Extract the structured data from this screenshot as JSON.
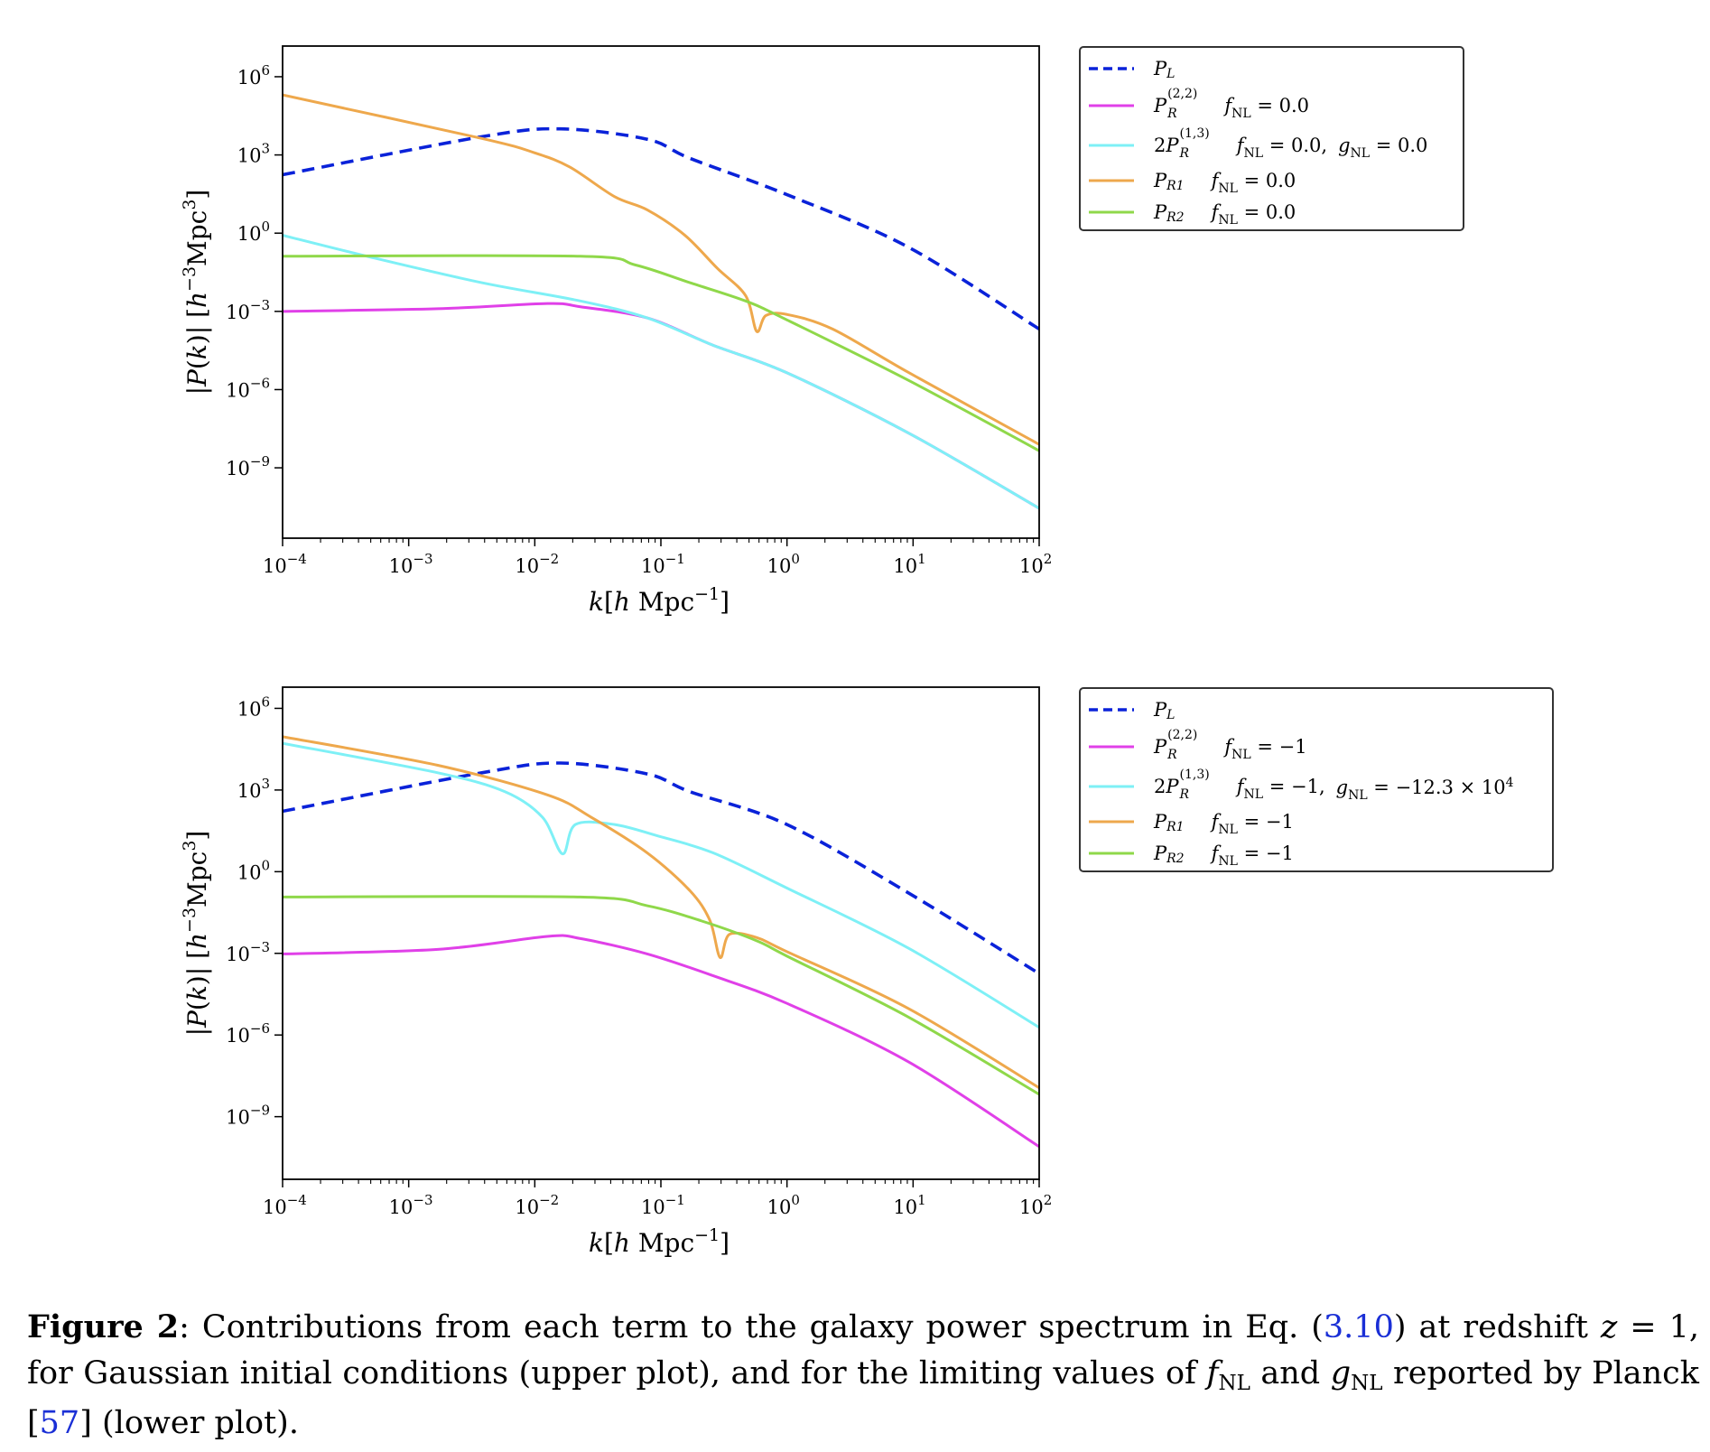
{
  "chart_data": [
    {
      "type": "line",
      "xscale": "log",
      "yscale": "log",
      "xlim": [
        0.0001,
        100
      ],
      "ylim": [
        2e-12,
        15000000.0
      ],
      "grid": false,
      "legend_placement": "outside-right-top",
      "xlabel": {
        "pre": "k",
        "mid": "[",
        "h": "h",
        "unit": " Mpc",
        "exp": "−1",
        "post": "]"
      },
      "ylabel": {
        "text1": "|",
        "P": "P",
        "text2": "(",
        "k": "k",
        "text3": ")| [",
        "h": "h",
        "exp1": "−3",
        "unit": "Mpc",
        "exp2": "3",
        "text4": "]"
      },
      "xticks": [
        {
          "base": "10",
          "exp": "−4",
          "v": 0.0001
        },
        {
          "base": "10",
          "exp": "−3",
          "v": 0.001
        },
        {
          "base": "10",
          "exp": "−2",
          "v": 0.01
        },
        {
          "base": "10",
          "exp": "−1",
          "v": 0.1
        },
        {
          "base": "10",
          "exp": "0",
          "v": 1
        },
        {
          "base": "10",
          "exp": "1",
          "v": 10
        },
        {
          "base": "10",
          "exp": "2",
          "v": 100
        }
      ],
      "yticks": [
        {
          "base": "10",
          "exp": "6",
          "v": 1000000.0
        },
        {
          "base": "10",
          "exp": "3",
          "v": 1000.0
        },
        {
          "base": "10",
          "exp": "0",
          "v": 1
        },
        {
          "base": "10",
          "exp": "−3",
          "v": 0.001
        },
        {
          "base": "10",
          "exp": "−6",
          "v": 1e-06
        },
        {
          "base": "10",
          "exp": "−9",
          "v": 1e-09
        }
      ],
      "series": [
        {
          "name": "P_L",
          "color": "#0a22d9",
          "dash": true,
          "label": {
            "prefix": "",
            "sym": "P",
            "sub": "L",
            "sup": "",
            "params": []
          },
          "x": [
            0.0001,
            0.0038,
            0.016,
            0.078,
            0.17,
            1,
            9.3,
            100
          ],
          "y": [
            174,
            5000,
            10000,
            4000,
            740,
            30,
            0.28,
            0.00021
          ]
        },
        {
          "name": "P_R^(2,2)",
          "color": "#e040e8",
          "dash": false,
          "label": {
            "prefix": "",
            "sym": "P",
            "sub": "R",
            "sup": "(2,2)",
            "params": [
              {
                "var": "f",
                "sub": "NL",
                "rest": " = 0.0"
              }
            ]
          },
          "x": [
            0.0001,
            0.0017,
            0.0126,
            0.023,
            0.078,
            0.26,
            1,
            9.3,
            100
          ],
          "y": [
            0.001,
            0.00126,
            0.002,
            0.0015,
            0.00056,
            5e-05,
            4.4e-06,
            2.1e-08,
            2.8e-11
          ]
        },
        {
          "name": "2P_R^(1,3)",
          "color": "#7ef0f6",
          "dash": false,
          "label": {
            "prefix": "2",
            "sym": "P",
            "sub": "R",
            "sup": "(1,3)",
            "params": [
              {
                "var": "f",
                "sub": "NL",
                "rest": " = 0.0,"
              },
              {
                "var": "g",
                "sub": "NL",
                "rest": " = 0.0"
              }
            ]
          },
          "x": [
            0.0001,
            0.00051,
            0.0038,
            0.023,
            0.078,
            0.26,
            1,
            9.3,
            100
          ],
          "y": [
            0.83,
            0.117,
            0.0126,
            0.0025,
            0.00056,
            5e-05,
            4.4e-06,
            2.1e-08,
            2.8e-11
          ]
        },
        {
          "name": "P_R1",
          "color": "#eea84c",
          "dash": false,
          "label": {
            "prefix": "",
            "sym": "P",
            "sub": "R1",
            "sup": "",
            "params": [
              {
                "var": "f",
                "sub": "NL",
                "rest": " = 0.0"
              }
            ]
          },
          "x": [
            0.0001,
            0.0038,
            0.01,
            0.019,
            0.043,
            0.078,
            0.155,
            0.28,
            0.47,
            0.575,
            0.68,
            1,
            2.3,
            9.3,
            100
          ],
          "y": [
            200000.0,
            4300,
            1200,
            340,
            25,
            7.8,
            0.83,
            0.045,
            0.004,
            0.00017,
            0.00069,
            0.00076,
            0.00021,
            4.4e-06,
            7.9e-09
          ]
        },
        {
          "name": "P_R2",
          "color": "#8fd84a",
          "dash": false,
          "label": {
            "prefix": "",
            "sym": "P",
            "sub": "R2",
            "sup": "",
            "params": [
              {
                "var": "f",
                "sub": "NL",
                "rest": " = 0.0"
              }
            ]
          },
          "x": [
            0.0001,
            0.023,
            0.063,
            0.17,
            0.47,
            1,
            9.3,
            100
          ],
          "y": [
            0.13,
            0.13,
            0.06,
            0.0126,
            0.0025,
            0.00047,
            2.2e-06,
            4.5e-09
          ]
        }
      ]
    },
    {
      "type": "line",
      "xscale": "log",
      "yscale": "log",
      "xlim": [
        0.0001,
        100
      ],
      "ylim": [
        5e-12,
        6000000.0
      ],
      "grid": false,
      "legend_placement": "outside-right-top",
      "xlabel": {
        "pre": "k",
        "mid": "[",
        "h": "h",
        "unit": " Mpc",
        "exp": "−1",
        "post": "]"
      },
      "ylabel": {
        "text1": "|",
        "P": "P",
        "text2": "(",
        "k": "k",
        "text3": ")| [",
        "h": "h",
        "exp1": "−3",
        "unit": "Mpc",
        "exp2": "3",
        "text4": "]"
      },
      "xticks": [
        {
          "base": "10",
          "exp": "−4",
          "v": 0.0001
        },
        {
          "base": "10",
          "exp": "−3",
          "v": 0.001
        },
        {
          "base": "10",
          "exp": "−2",
          "v": 0.01
        },
        {
          "base": "10",
          "exp": "−1",
          "v": 0.1
        },
        {
          "base": "10",
          "exp": "0",
          "v": 1
        },
        {
          "base": "10",
          "exp": "1",
          "v": 10
        },
        {
          "base": "10",
          "exp": "2",
          "v": 100
        }
      ],
      "yticks": [
        {
          "base": "10",
          "exp": "6",
          "v": 1000000.0
        },
        {
          "base": "10",
          "exp": "3",
          "v": 1000.0
        },
        {
          "base": "10",
          "exp": "0",
          "v": 1
        },
        {
          "base": "10",
          "exp": "−3",
          "v": 0.001
        },
        {
          "base": "10",
          "exp": "−6",
          "v": 1e-06
        },
        {
          "base": "10",
          "exp": "−9",
          "v": 1e-09
        }
      ],
      "series": [
        {
          "name": "P_L",
          "color": "#0a22d9",
          "dash": true,
          "label": {
            "prefix": "",
            "sym": "P",
            "sub": "L",
            "sup": "",
            "params": []
          },
          "x": [
            0.0001,
            0.0038,
            0.016,
            0.078,
            0.17,
            1,
            9.3,
            100
          ],
          "y": [
            166,
            4300,
            9800,
            3900,
            870,
            54,
            0.16,
            0.00018
          ]
        },
        {
          "name": "P_R^(2,2)",
          "color": "#e040e8",
          "dash": false,
          "label": {
            "prefix": "",
            "sym": "P",
            "sub": "R",
            "sup": "(2,2)",
            "params": [
              {
                "var": "f",
                "sub": "NL",
                "rest": " = −1"
              }
            ]
          },
          "x": [
            0.0001,
            0.0017,
            0.0126,
            0.023,
            0.078,
            0.26,
            1,
            9.3,
            100
          ],
          "y": [
            0.00095,
            0.0014,
            0.0042,
            0.0035,
            0.00095,
            0.00015,
            1.45e-05,
            1e-07,
            7.9e-11
          ]
        },
        {
          "name": "2P_R^(1,3)",
          "color": "#7ef0f6",
          "dash": false,
          "label": {
            "prefix": "2",
            "sym": "P",
            "sub": "R",
            "sup": "(1,3)",
            "params": [
              {
                "var": "f",
                "sub": "NL",
                "rest": " = −1,"
              },
              {
                "var": "g",
                "sub": "NL",
                "rest": " = −12.3 × 10",
                "exp": "4"
              }
            ]
          },
          "x": [
            0.0001,
            0.0017,
            0.0058,
            0.0115,
            0.0166,
            0.021,
            0.043,
            0.093,
            0.26,
            1,
            9.3,
            100
          ],
          "y": [
            52000.0,
            4300,
            870,
            100,
            4.5,
            54,
            54,
            21,
            4.9,
            0.25,
            0.0015,
            1.9e-06
          ]
        },
        {
          "name": "P_R1",
          "color": "#eea84c",
          "dash": false,
          "label": {
            "prefix": "",
            "sym": "P",
            "sub": "R1",
            "sup": "",
            "params": [
              {
                "var": "f",
                "sub": "NL",
                "rest": " = −1"
              }
            ]
          },
          "x": [
            0.0001,
            0.0017,
            0.0126,
            0.028,
            0.078,
            0.17,
            0.245,
            0.295,
            0.35,
            0.575,
            1,
            9.3,
            100
          ],
          "y": [
            91000.0,
            8100,
            660,
            100,
            4.9,
            0.2,
            0.016,
            0.0007,
            0.005,
            0.0038,
            0.00115,
            9.1e-06,
            1.15e-08
          ]
        },
        {
          "name": "P_R2",
          "color": "#8fd84a",
          "dash": false,
          "label": {
            "prefix": "",
            "sym": "P",
            "sub": "R2",
            "sup": "",
            "params": [
              {
                "var": "f",
                "sub": "NL",
                "rest": " = −1"
              }
            ]
          },
          "x": [
            0.0001,
            0.023,
            0.078,
            0.21,
            0.575,
            1,
            9.3,
            100
          ],
          "y": [
            0.117,
            0.117,
            0.056,
            0.0155,
            0.0029,
            0.00079,
            4.4e-06,
            6.6e-09
          ]
        }
      ]
    }
  ],
  "caption": {
    "label": "Figure 2",
    "t1": ": Contributions from each term to the galaxy power spectrum in Eq. (",
    "ref1": "3.10",
    "t2": ") at redshift ",
    "z": "z",
    "t3": " = 1, for Gaussian initial conditions (upper plot), and for the limiting values of ",
    "f": "f",
    "fsub": "NL",
    "t4": " and ",
    "g": "g",
    "gsub": "NL",
    "t5": " reported by Planck [",
    "ref2": "57",
    "t6": "] (lower plot)."
  },
  "colors": {
    "link": "#1a2fd6",
    "axes": "#000000"
  }
}
